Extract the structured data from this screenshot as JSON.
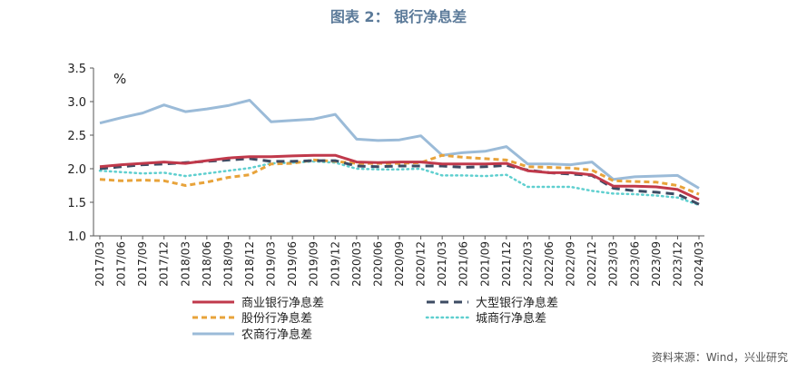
{
  "chart_data": {
    "type": "line",
    "title": "图表 2：  银行净息差",
    "ylabel": "%",
    "ylim": [
      1.0,
      3.5
    ],
    "yticks": [
      "1.0",
      "1.5",
      "2.0",
      "2.5",
      "3.0",
      "3.5"
    ],
    "grid": false,
    "legend_position": "bottom",
    "categories": [
      "2017/03",
      "2017/06",
      "2017/09",
      "2017/12",
      "2018/03",
      "2018/06",
      "2018/09",
      "2018/12",
      "2019/03",
      "2019/06",
      "2019/09",
      "2019/12",
      "2020/03",
      "2020/06",
      "2020/09",
      "2020/12",
      "2021/03",
      "2021/06",
      "2021/09",
      "2021/12",
      "2022/03",
      "2022/06",
      "2022/09",
      "2022/12",
      "2023/03",
      "2023/06",
      "2023/09",
      "2023/12",
      "2024/03"
    ],
    "series": [
      {
        "name": "商业银行净息差",
        "color": "#c0394b",
        "style": "solid",
        "values": [
          2.03,
          2.06,
          2.08,
          2.1,
          2.08,
          2.12,
          2.16,
          2.18,
          2.18,
          2.19,
          2.2,
          2.2,
          2.1,
          2.09,
          2.1,
          2.1,
          2.07,
          2.07,
          2.07,
          2.08,
          1.97,
          1.94,
          1.94,
          1.91,
          1.74,
          1.74,
          1.73,
          1.69,
          1.54
        ]
      },
      {
        "name": "大型银行净息差",
        "color": "#3d4b63",
        "style": "dash",
        "values": [
          2.0,
          2.03,
          2.06,
          2.07,
          2.09,
          2.11,
          2.13,
          2.15,
          2.11,
          2.11,
          2.12,
          2.12,
          2.04,
          2.03,
          2.04,
          2.04,
          2.04,
          2.02,
          2.03,
          2.05,
          1.98,
          1.94,
          1.92,
          1.9,
          1.71,
          1.67,
          1.65,
          1.62,
          1.47
        ]
      },
      {
        "name": "股份行净息差",
        "color": "#e8a33a",
        "style": "dash-short",
        "values": [
          1.84,
          1.82,
          1.83,
          1.82,
          1.75,
          1.8,
          1.87,
          1.91,
          2.07,
          2.08,
          2.13,
          2.11,
          2.08,
          2.08,
          2.08,
          2.09,
          2.2,
          2.17,
          2.15,
          2.13,
          2.03,
          2.02,
          2.01,
          1.98,
          1.82,
          1.81,
          1.8,
          1.75,
          1.62
        ]
      },
      {
        "name": "城商行净息差",
        "color": "#5fcfcf",
        "style": "dot",
        "values": [
          1.97,
          1.95,
          1.93,
          1.94,
          1.89,
          1.93,
          1.97,
          2.01,
          2.08,
          2.09,
          2.11,
          2.09,
          2.0,
          1.99,
          1.99,
          2.0,
          1.9,
          1.9,
          1.89,
          1.91,
          1.73,
          1.73,
          1.73,
          1.67,
          1.63,
          1.62,
          1.6,
          1.57,
          1.46
        ]
      },
      {
        "name": "农商行净息差",
        "color": "#9bbbd8",
        "style": "solid",
        "values": [
          2.68,
          2.76,
          2.83,
          2.95,
          2.85,
          2.89,
          2.94,
          3.02,
          2.7,
          2.72,
          2.74,
          2.81,
          2.44,
          2.42,
          2.43,
          2.49,
          2.2,
          2.24,
          2.26,
          2.33,
          2.07,
          2.07,
          2.06,
          2.1,
          1.84,
          1.88,
          1.89,
          1.9,
          1.71
        ]
      }
    ],
    "source": "资料来源：Wind，兴业研究"
  }
}
